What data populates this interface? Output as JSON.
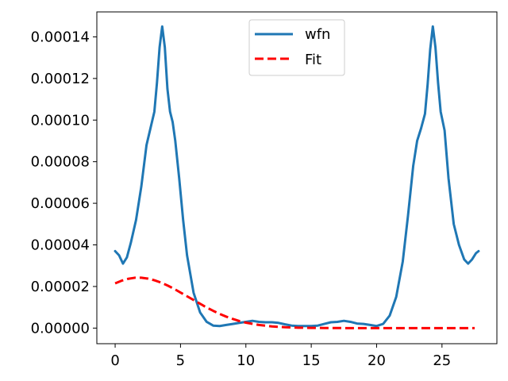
{
  "chart_data": {
    "type": "line",
    "title": "",
    "xlabel": "",
    "ylabel": "",
    "xlim": [
      -1.4,
      29.2
    ],
    "ylim": [
      -7.5e-06,
      0.000152
    ],
    "xticks": [
      0,
      5,
      10,
      15,
      20,
      25
    ],
    "xtick_labels": [
      "0",
      "5",
      "10",
      "15",
      "20",
      "25"
    ],
    "yticks": [
      0,
      2e-05,
      4e-05,
      6e-05,
      8e-05,
      0.0001,
      0.00012,
      0.00014
    ],
    "ytick_labels": [
      "0.00000",
      "0.00002",
      "0.00004",
      "0.00006",
      "0.00008",
      "0.00010",
      "0.00012",
      "0.00014"
    ],
    "grid": false,
    "legend_position": "top-center",
    "series": [
      {
        "name": "wfn",
        "color": "#1f77b4",
        "style": "solid",
        "x": [
          0,
          0.3,
          0.6,
          0.9,
          1.2,
          1.6,
          2.0,
          2.4,
          2.7,
          3.0,
          3.2,
          3.4,
          3.6,
          3.8,
          4.0,
          4.2,
          4.4,
          4.6,
          4.9,
          5.2,
          5.5,
          6.0,
          6.5,
          7.0,
          7.5,
          8.0,
          8.5,
          9.0,
          9.5,
          10.0,
          10.5,
          11.0,
          11.5,
          12.0,
          12.5,
          13.0,
          13.5,
          14.0,
          14.5,
          15.0,
          15.5,
          16.0,
          16.5,
          17.0,
          17.5,
          18.0,
          18.5,
          19.0,
          19.5,
          20.0,
          20.5,
          21.0,
          21.5,
          22.0,
          22.4,
          22.8,
          23.1,
          23.4,
          23.7,
          23.9,
          24.1,
          24.3,
          24.5,
          24.7,
          24.9,
          25.2,
          25.5,
          25.9,
          26.3,
          26.7,
          27.0,
          27.3,
          27.6,
          27.8
        ],
        "y": [
          3.7e-05,
          3.5e-05,
          3.1e-05,
          3.4e-05,
          4.1e-05,
          5.2e-05,
          6.8e-05,
          8.8e-05,
          9.6e-05,
          0.000104,
          0.000118,
          0.000135,
          0.000145,
          0.000135,
          0.000115,
          0.000104,
          9.9e-05,
          9e-05,
          7.2e-05,
          5.2e-05,
          3.5e-05,
          1.7e-05,
          7.5e-06,
          3e-06,
          1.2e-06,
          1e-06,
          1.5e-06,
          2e-06,
          2.5e-06,
          3e-06,
          3.5e-06,
          3e-06,
          2.8e-06,
          2.8e-06,
          2.5e-06,
          1.8e-06,
          1.2e-06,
          1e-06,
          1e-06,
          1e-06,
          1.2e-06,
          2e-06,
          2.8e-06,
          3e-06,
          3.5e-06,
          3e-06,
          2.2e-06,
          2e-06,
          1.5e-06,
          1e-06,
          2e-06,
          6e-06,
          1.5e-05,
          3.2e-05,
          5.4e-05,
          7.8e-05,
          9e-05,
          9.6e-05,
          0.000103,
          0.000117,
          0.000134,
          0.000145,
          0.000135,
          0.000118,
          0.000104,
          9.5e-05,
          7.2e-05,
          5e-05,
          4e-05,
          3.3e-05,
          3.1e-05,
          3.3e-05,
          3.6e-05,
          3.7e-05
        ]
      },
      {
        "name": "Fit",
        "color": "#ff0000",
        "style": "dashed",
        "x": [
          0,
          0.5,
          1.0,
          1.5,
          2.0,
          2.5,
          3.0,
          3.5,
          4.0,
          4.5,
          5.0,
          5.5,
          6.0,
          6.5,
          7.0,
          7.5,
          8.0,
          8.5,
          9.0,
          9.5,
          10.0,
          11.0,
          12.0,
          13.0,
          14.0,
          15.0,
          16.0,
          18.0,
          20.0,
          22.0,
          24.0,
          26.0,
          27.5
        ],
        "y": [
          2.15e-05,
          2.28e-05,
          2.37e-05,
          2.42e-05,
          2.42e-05,
          2.38e-05,
          2.3e-05,
          2.19e-05,
          2.05e-05,
          1.89e-05,
          1.71e-05,
          1.53e-05,
          1.35e-05,
          1.17e-05,
          9.9e-06,
          8.3e-06,
          6.8e-06,
          5.5e-06,
          4.4e-06,
          3.4e-06,
          2.6e-06,
          1.5e-06,
          8e-07,
          4e-07,
          2e-07,
          1e-07,
          5e-08,
          0.0,
          0.0,
          0.0,
          0.0,
          0.0,
          0.0
        ]
      }
    ]
  }
}
